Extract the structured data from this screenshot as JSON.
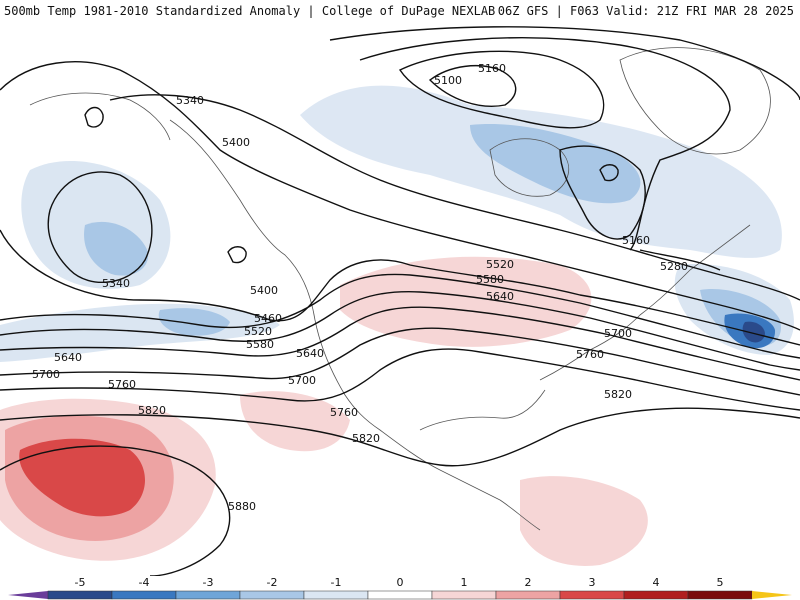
{
  "header": {
    "left": "500mb Temp 1981-2010 Standardized Anomaly | College of DuPage NEXLAB",
    "right": "06Z GFS | F063 Valid: 21Z FRI MAR 28 2025"
  },
  "contour_labels": [
    "5160",
    "5100",
    "5340",
    "5400",
    "5160",
    "5280",
    "5340",
    "5400",
    "5460",
    "5520",
    "5580",
    "5520",
    "5580",
    "5640",
    "5640",
    "5700",
    "5700",
    "5760",
    "5640",
    "5700",
    "5760",
    "5760",
    "5820",
    "5820",
    "5820",
    "5880"
  ],
  "colorbar": {
    "ticks": [
      "-5",
      "-4",
      "-3",
      "-2",
      "-1",
      "0",
      "1",
      "2",
      "3",
      "4",
      "5"
    ],
    "colors": [
      "#6a3d9a",
      "#2a4a8a",
      "#3a78c0",
      "#6fa5d8",
      "#a9c7e6",
      "#dbe6f2",
      "#ffffff",
      "#f6d6d6",
      "#eda3a3",
      "#d94848",
      "#b01e1e",
      "#7a0c0c",
      "#f5c518"
    ]
  }
}
